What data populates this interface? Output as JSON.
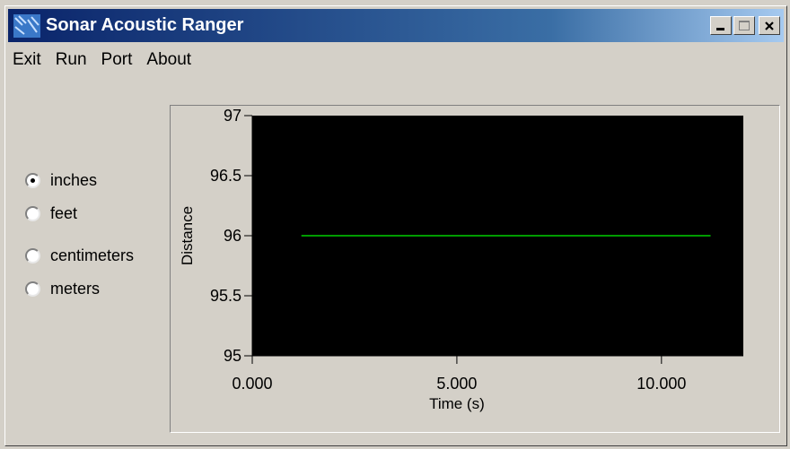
{
  "window": {
    "title": "Sonar Acoustic Ranger"
  },
  "menu": {
    "items": [
      "Exit",
      "Run",
      "Port",
      "About"
    ]
  },
  "units": {
    "options": [
      "inches",
      "feet",
      "centimeters",
      "meters"
    ],
    "selected": "inches"
  },
  "colors": {
    "plot_background": "#000000",
    "trace": "#00d000",
    "titlebar": "#0a246a"
  },
  "chart_data": {
    "type": "line",
    "xlabel": "Time (s)",
    "ylabel": "Distance",
    "xlim": [
      0,
      12
    ],
    "ylim": [
      95,
      97
    ],
    "x_ticks": [
      0,
      5,
      10
    ],
    "x_tick_labels": [
      "0.000",
      "5.000",
      "10.000"
    ],
    "y_ticks": [
      95,
      95.5,
      96,
      96.5,
      97
    ],
    "y_tick_labels": [
      "95",
      "95.5",
      "96",
      "96.5",
      "97"
    ],
    "grid": false,
    "series": [
      {
        "x": [
          1.2,
          11.2
        ],
        "y": [
          96,
          96
        ]
      }
    ]
  }
}
